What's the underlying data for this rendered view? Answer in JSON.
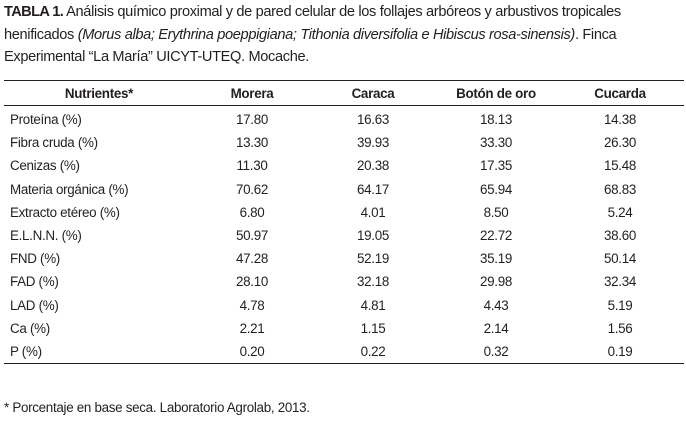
{
  "caption": {
    "label": "TABLA 1.",
    "text_before": " Análisis químico proximal y de pared celular de los follajes arbóreos y arbustivos tropicales henificados ",
    "italic": "(Morus alba; Erythrina poeppigiana; Tithonia diversifolia e Hibiscus rosa-sinensis)",
    "text_after": ". Finca Experimental “La María” UICYT-UTEQ. Mocache."
  },
  "table": {
    "headers": [
      "Nutrientes*",
      "Morera",
      "Caraca",
      "Botón de oro",
      "Cucarda"
    ],
    "rows": [
      [
        "Proteína (%)",
        "17.80",
        "16.63",
        "18.13",
        "14.38"
      ],
      [
        "Fibra cruda (%)",
        "13.30",
        "39.93",
        "33.30",
        "26.30"
      ],
      [
        "Cenizas (%)",
        "11.30",
        "20.38",
        "17.35",
        "15.48"
      ],
      [
        "Materia orgánica (%)",
        "70.62",
        "64.17",
        "65.94",
        "68.83"
      ],
      [
        "Extracto etéreo (%)",
        "6.80",
        "4.01",
        "8.50",
        "5.24"
      ],
      [
        "E.L.N.N. (%)",
        "50.97",
        "19.05",
        "22.72",
        "38.60"
      ],
      [
        "FND (%)",
        "47.28",
        "52.19",
        "35.19",
        "50.14"
      ],
      [
        "FAD (%)",
        "28.10",
        "32.18",
        "29.98",
        "32.34"
      ],
      [
        "LAD (%)",
        "4.78",
        "4.81",
        "4.43",
        "5.19"
      ],
      [
        "Ca (%)",
        "2.21",
        "1.15",
        "2.14",
        "1.56"
      ],
      [
        "P (%)",
        "0.20",
        "0.22",
        "0.32",
        "0.19"
      ]
    ]
  },
  "footnote": "* Porcentaje en base seca. Laboratorio Agrolab, 2013."
}
